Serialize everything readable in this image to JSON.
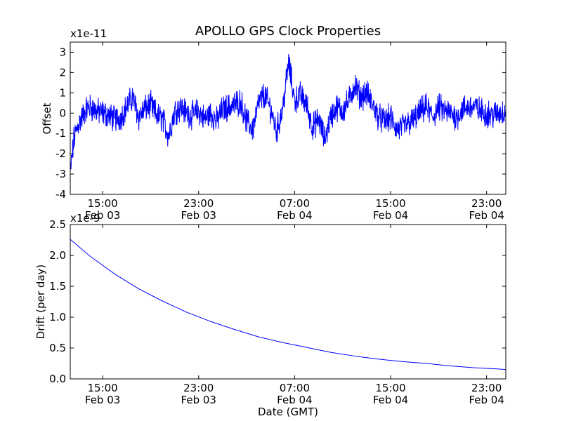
{
  "chart_data": [
    {
      "type": "line",
      "title": "APOLLO GPS Clock Properties",
      "xlabel": "",
      "ylabel": "Offset",
      "y_multiplier": "x1e-11",
      "xlim_hours": [
        12.3,
        48.6
      ],
      "ylim": [
        -4,
        3.5
      ],
      "yticks": [
        -4,
        -3,
        -2,
        -1,
        0,
        1,
        2,
        3
      ],
      "ytick_labels": [
        "-4",
        "-3",
        "-2",
        "-1",
        "0",
        "1",
        "2",
        "3"
      ],
      "xticks_hours": [
        15,
        23,
        31,
        39,
        47
      ],
      "xtick_labels": [
        [
          "15:00",
          "Feb 03"
        ],
        [
          "23:00",
          "Feb 03"
        ],
        [
          "07:00",
          "Feb 04"
        ],
        [
          "15:00",
          "Feb 04"
        ],
        [
          "23:00",
          "Feb 04"
        ]
      ],
      "line_color": "#0000ff",
      "series": [
        {
          "name": "offset",
          "x_hours": [
            12.3,
            12.4,
            12.5,
            12.6,
            12.8,
            13.0,
            13.3,
            13.6,
            14.0,
            14.5,
            15.0,
            15.5,
            16.0,
            16.5,
            17.0,
            17.5,
            18.0,
            18.5,
            19.0,
            19.5,
            20.0,
            20.5,
            21.0,
            21.5,
            22.0,
            22.5,
            23.0,
            23.5,
            24.0,
            24.5,
            25.0,
            25.5,
            26.0,
            26.5,
            27.0,
            27.5,
            28.0,
            28.5,
            29.0,
            29.5,
            30.0,
            30.5,
            31.0,
            31.5,
            32.0,
            32.5,
            33.0,
            33.5,
            34.0,
            34.5,
            35.0,
            35.5,
            36.0,
            36.5,
            37.0,
            37.5,
            38.0,
            38.5,
            39.0,
            39.5,
            40.0,
            40.5,
            41.0,
            41.5,
            42.0,
            42.5,
            43.0,
            43.5,
            44.0,
            44.5,
            45.0,
            45.5,
            46.0,
            46.5,
            47.0,
            47.5,
            48.0,
            48.6
          ],
          "values": [
            -3.0,
            -2.4,
            -1.9,
            -1.3,
            -0.9,
            -0.5,
            -0.2,
            0.2,
            0.3,
            0.1,
            0.0,
            -0.1,
            -0.3,
            -0.2,
            0.3,
            0.8,
            -0.2,
            0.2,
            0.4,
            -0.1,
            -0.3,
            -1.1,
            0.1,
            0.3,
            0.0,
            -0.1,
            0.1,
            -0.3,
            0.0,
            -0.4,
            0.2,
            0.3,
            0.4,
            0.6,
            -0.4,
            -0.8,
            0.5,
            0.9,
            0.2,
            -0.9,
            0.2,
            2.5,
            0.6,
            0.9,
            0.4,
            -0.7,
            -0.3,
            -1.3,
            -0.2,
            0.3,
            0.1,
            0.6,
            1.4,
            0.8,
            1.0,
            0.4,
            -0.2,
            -0.4,
            -0.2,
            -0.8,
            -0.7,
            -0.5,
            -0.3,
            0.1,
            0.3,
            -0.2,
            0.3,
            0.1,
            0.0,
            -0.2,
            0.2,
            0.3,
            0.3,
            0.1,
            0.0,
            -0.1,
            0.0,
            0.1
          ]
        }
      ]
    },
    {
      "type": "line",
      "title": "",
      "xlabel": "Date (GMT)",
      "ylabel": "Drift (per day)",
      "y_multiplier": "x1e-9",
      "xlim_hours": [
        12.3,
        48.6
      ],
      "ylim": [
        0.0,
        2.5
      ],
      "yticks": [
        0.0,
        0.5,
        1.0,
        1.5,
        2.0,
        2.5
      ],
      "ytick_labels": [
        "0.0",
        "0.5",
        "1.0",
        "1.5",
        "2.0",
        "2.5"
      ],
      "xticks_hours": [
        15,
        23,
        31,
        39,
        47
      ],
      "xtick_labels": [
        [
          "15:00",
          "Feb 03"
        ],
        [
          "23:00",
          "Feb 03"
        ],
        [
          "07:00",
          "Feb 04"
        ],
        [
          "15:00",
          "Feb 04"
        ],
        [
          "23:00",
          "Feb 04"
        ]
      ],
      "line_color": "#0000ff",
      "series": [
        {
          "name": "drift",
          "x_hours": [
            12.3,
            14.0,
            16.0,
            18.0,
            20.0,
            22.0,
            24.0,
            26.0,
            28.0,
            30.0,
            32.0,
            34.0,
            36.0,
            38.0,
            40.0,
            42.0,
            44.0,
            46.0,
            48.0,
            48.6
          ],
          "values": [
            2.26,
            1.98,
            1.7,
            1.46,
            1.26,
            1.08,
            0.93,
            0.8,
            0.68,
            0.59,
            0.51,
            0.43,
            0.37,
            0.32,
            0.28,
            0.25,
            0.21,
            0.18,
            0.16,
            0.15
          ]
        }
      ]
    }
  ]
}
